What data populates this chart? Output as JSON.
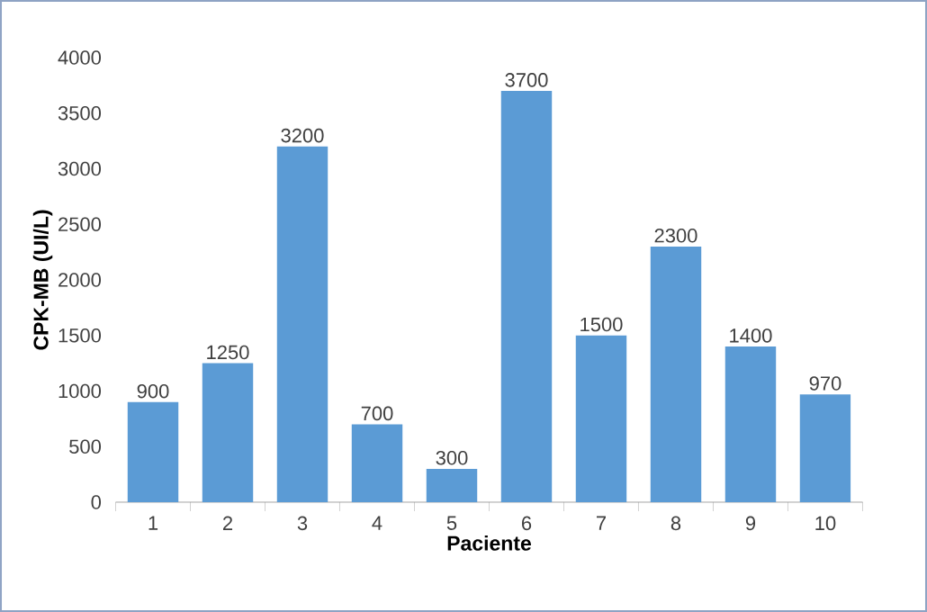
{
  "chart_data": {
    "type": "bar",
    "xlabel": "Paciente",
    "ylabel": "CPK-MB (UI/L)",
    "categories": [
      "1",
      "2",
      "3",
      "4",
      "5",
      "6",
      "7",
      "8",
      "9",
      "10"
    ],
    "values": [
      900,
      1250,
      3200,
      700,
      300,
      3700,
      1500,
      2300,
      1400,
      970
    ],
    "color": "#5b9bd5",
    "ylim": [
      0,
      4000
    ],
    "yticks": [
      0,
      500,
      1000,
      1500,
      2000,
      2500,
      3000,
      3500,
      4000
    ],
    "data_labels": true,
    "grid": false
  }
}
